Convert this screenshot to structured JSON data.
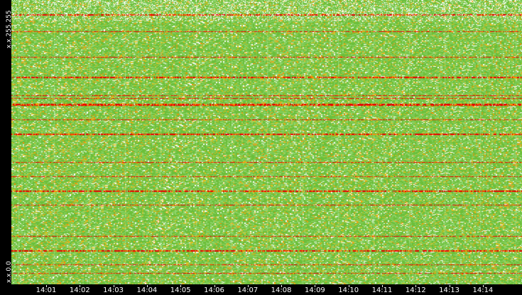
{
  "chart_data": {
    "type": "heatmap",
    "title": "",
    "xlabel": "",
    "ylabel": "",
    "y_tick_labels": [
      "x.x.255.255",
      "x.x.0.0"
    ],
    "x_tick_labels": [
      "14:01",
      "14:02",
      "14:03",
      "14:04",
      "14:05",
      "14:06",
      "14:07",
      "14:08",
      "14:09",
      "14:10",
      "14:11",
      "14:12",
      "14:13",
      "14:14"
    ],
    "color_scale": [
      "#ffffff",
      "#8fd46a",
      "#6cbf3a",
      "#e0c020",
      "#ff8a00",
      "#e80000"
    ],
    "background_color": "#6cbf3a",
    "hot_rows_fraction": [
      0.05,
      0.11,
      0.2,
      0.27,
      0.335,
      0.345,
      0.365,
      0.37,
      0.42,
      0.47,
      0.57,
      0.62,
      0.67,
      0.72,
      0.83,
      0.88,
      0.93,
      0.96
    ]
  }
}
